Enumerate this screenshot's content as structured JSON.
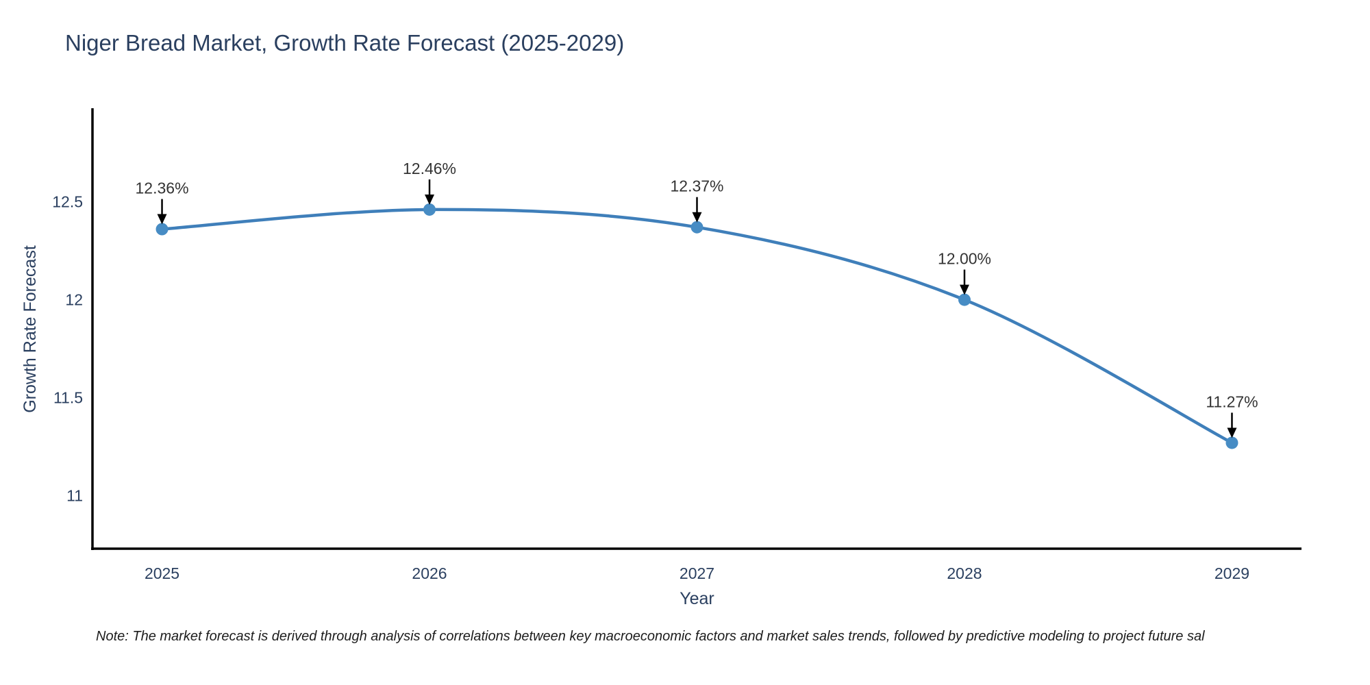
{
  "note": {
    "text": "Note: The market forecast is derived through analysis of correlations between key macroeconomic factors and market sales trends, followed by predictive modeling to project future sal"
  },
  "chart_data": {
    "type": "line",
    "title": "Niger Bread Market, Growth Rate Forecast (2025-2029)",
    "x": [
      2025,
      2026,
      2027,
      2028,
      2029
    ],
    "series": [
      {
        "name": "Growth Rate Forecast",
        "values": [
          12.36,
          12.46,
          12.37,
          12.0,
          11.27
        ]
      }
    ],
    "point_labels": [
      "12.36%",
      "12.46%",
      "12.37%",
      "12.00%",
      "11.27%"
    ],
    "xlabel": "Year",
    "ylabel": "Growth Rate Forecast",
    "xticks": [
      "2025",
      "2026",
      "2027",
      "2028",
      "2029"
    ],
    "xtick_values": [
      2025,
      2026,
      2027,
      2028,
      2029
    ],
    "yticks": [
      "11",
      "11.5",
      "12",
      "12.5"
    ],
    "ytick_values": [
      11,
      11.5,
      12,
      12.5
    ],
    "xlim": [
      2024.74,
      2029.26
    ],
    "ylim": [
      10.73,
      12.97
    ],
    "grid": false,
    "legend": false,
    "smooth": true,
    "colors": {
      "line": "#3f7fba",
      "marker": "#478cc4",
      "axis": "#000000",
      "tick_label": "#2a3f5f",
      "annotation": "#333333",
      "arrow": "#000000",
      "title": "#2a3f5f"
    }
  }
}
